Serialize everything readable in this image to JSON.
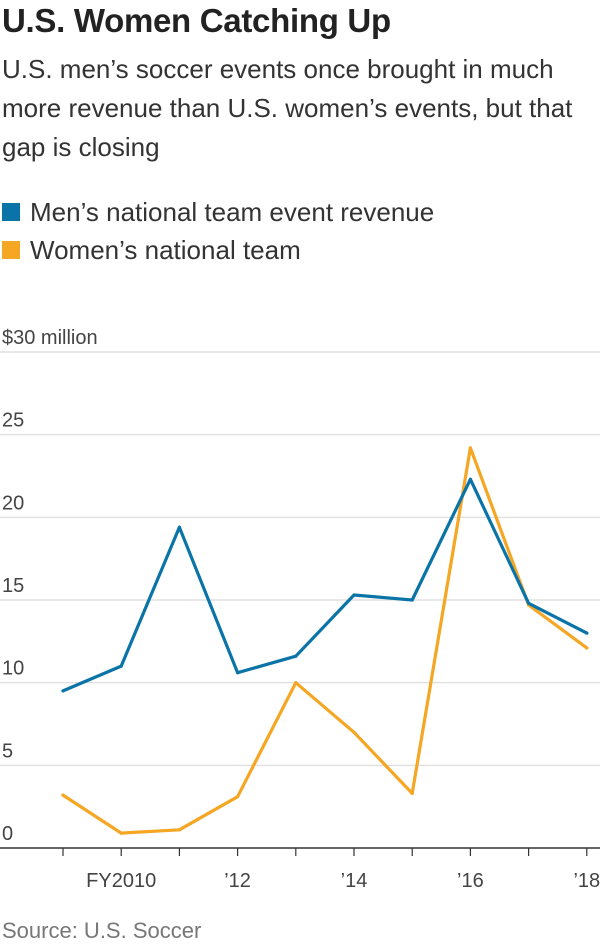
{
  "header": {
    "title": "U.S. Women Catching Up",
    "subtitle": "U.S. men’s soccer events once brought in much more revenue than U.S. women’s events, but that gap is closing"
  },
  "legend": [
    {
      "label": "Men’s national team event revenue",
      "color": "#0a74a8"
    },
    {
      "label": "Women’s national team",
      "color": "#f5a623"
    }
  ],
  "source": "Source: U.S. Soccer",
  "chart_data": {
    "type": "line",
    "title": "U.S. Women Catching Up",
    "x": [
      2009,
      2010,
      2011,
      2012,
      2013,
      2014,
      2015,
      2016,
      2017,
      2018
    ],
    "x_tick_values": [
      2010,
      2012,
      2014,
      2016,
      2018
    ],
    "x_tick_labels": [
      "FY2010",
      "’12",
      "’14",
      "’16",
      "’18"
    ],
    "ylim": [
      0,
      30
    ],
    "y_ticks": [
      0,
      5,
      10,
      15,
      20,
      25,
      30
    ],
    "y_tick_labels": [
      "0",
      "5",
      "10",
      "15",
      "20",
      "25",
      "$30 million"
    ],
    "grid": true,
    "legend_position": "top-left",
    "series": [
      {
        "name": "Men’s national team event revenue",
        "color": "#0a74a8",
        "values": [
          9.5,
          11.0,
          19.4,
          10.6,
          11.6,
          15.3,
          15.0,
          22.3,
          14.8,
          13.0
        ]
      },
      {
        "name": "Women’s national team",
        "color": "#f5a623",
        "values": [
          3.2,
          0.9,
          1.1,
          3.1,
          10.0,
          7.0,
          3.3,
          24.2,
          14.7,
          12.1
        ]
      }
    ]
  }
}
